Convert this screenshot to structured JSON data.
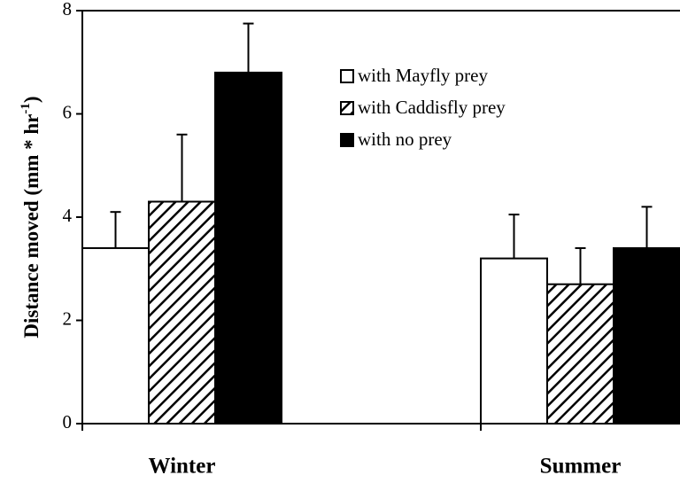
{
  "chart_data": {
    "type": "bar",
    "ylabel": {
      "text": "Distance moved (mm * hr",
      "superscript": "-1",
      "tail": ")"
    },
    "categories": [
      "Winter",
      "Summer"
    ],
    "series": [
      {
        "name": "with Mayfly prey",
        "color": "#ffffff",
        "values": [
          3.4,
          3.2
        ],
        "errors": [
          0.7,
          0.85
        ]
      },
      {
        "name": "with Caddisfly prey",
        "color": "#ffffff",
        "hatch": true,
        "values": [
          4.3,
          2.7
        ],
        "errors": [
          1.3,
          0.7
        ]
      },
      {
        "name": "with no prey",
        "color": "#000000",
        "values": [
          6.8,
          3.4
        ],
        "errors": [
          0.95,
          0.8
        ]
      }
    ],
    "ylim": [
      0,
      8
    ],
    "yticks": [
      0,
      2,
      4,
      6,
      8
    ],
    "legend": "top-right"
  }
}
